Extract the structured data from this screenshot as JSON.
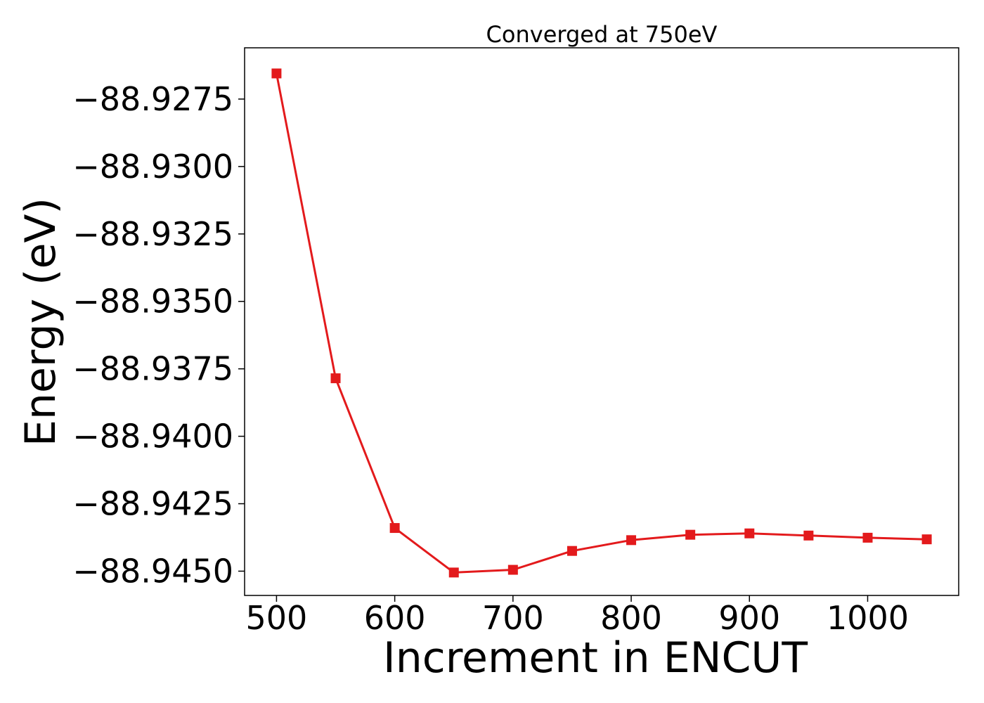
{
  "chart_data": {
    "type": "line",
    "title": "Converged at 750eV",
    "xlabel": "Increment in ENCUT",
    "ylabel": "Energy (eV)",
    "xlim": [
      473,
      1077
    ],
    "ylim": [
      -88.9459,
      -88.9256
    ],
    "xticks": [
      500,
      600,
      700,
      800,
      900,
      1000
    ],
    "xtick_labels": [
      "500",
      "600",
      "700",
      "800",
      "900",
      "1000"
    ],
    "yticks": [
      -88.9275,
      -88.93,
      -88.9325,
      -88.935,
      -88.9375,
      -88.94,
      -88.9425,
      -88.945
    ],
    "ytick_labels": [
      "−88.9275",
      "−88.9300",
      "−88.9325",
      "−88.9350",
      "−88.9375",
      "−88.9400",
      "−88.9425",
      "−88.9450"
    ],
    "grid": false,
    "series": [
      {
        "color": "#e31a1c",
        "marker": "square",
        "x": [
          500,
          550,
          600,
          650,
          700,
          750,
          800,
          850,
          900,
          950,
          1000,
          1050
        ],
        "y": [
          -88.92655,
          -88.93785,
          -88.9434,
          -88.94505,
          -88.94495,
          -88.94425,
          -88.94385,
          -88.94365,
          -88.9436,
          -88.94368,
          -88.94376,
          -88.94382
        ]
      }
    ]
  }
}
